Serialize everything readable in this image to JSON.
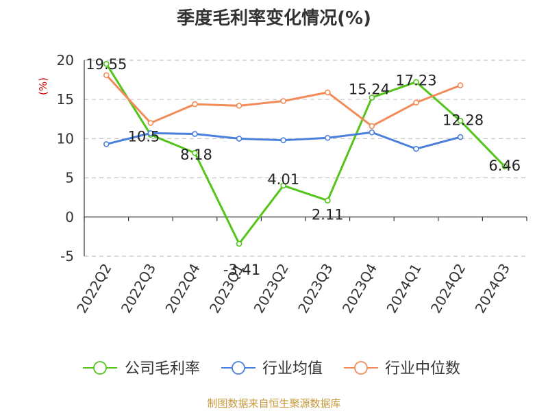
{
  "chart_data": {
    "type": "line",
    "title": "季度毛利率变化情况(%)",
    "ylabel": "(%)",
    "xlabel": "",
    "categories": [
      "2022Q2",
      "2022Q3",
      "2022Q4",
      "2023Q1",
      "2023Q2",
      "2023Q3",
      "2023Q4",
      "2024Q1",
      "2024Q2",
      "2024Q3"
    ],
    "y_ticks": [
      -5,
      0,
      5,
      10,
      15,
      20
    ],
    "ylim": [
      -5,
      20
    ],
    "grid": "horizontal-dashed",
    "legend_position": "bottom",
    "series": [
      {
        "name": "公司毛利率",
        "color": "#52c41a",
        "values": [
          19.55,
          10.5,
          8.18,
          -3.41,
          4.01,
          2.11,
          15.24,
          17.23,
          12.28,
          6.46
        ],
        "labels": [
          "19.55",
          "10.5",
          "8.18",
          "-3.41",
          "4.01",
          "2.11",
          "15.24",
          "17.23",
          "12.28",
          "6.46"
        ]
      },
      {
        "name": "行业均值",
        "color": "#4a7fdb",
        "values": [
          9.3,
          10.7,
          10.6,
          10.0,
          9.8,
          10.1,
          10.8,
          8.7,
          10.2,
          null
        ]
      },
      {
        "name": "行业中位数",
        "color": "#f28b57",
        "values": [
          18.1,
          12.0,
          14.4,
          14.2,
          14.8,
          15.9,
          11.6,
          14.6,
          16.8,
          null
        ]
      }
    ]
  },
  "source": "制图数据来自恒生聚源数据库"
}
